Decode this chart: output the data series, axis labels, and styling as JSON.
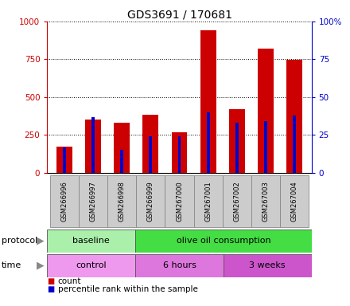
{
  "title": "GDS3691 / 170681",
  "samples": [
    "GSM266996",
    "GSM266997",
    "GSM266998",
    "GSM266999",
    "GSM267000",
    "GSM267001",
    "GSM267002",
    "GSM267003",
    "GSM267004"
  ],
  "count_values": [
    175,
    350,
    330,
    385,
    270,
    940,
    420,
    820,
    745
  ],
  "percentile_values": [
    17,
    37,
    15,
    24,
    24,
    40,
    33,
    34,
    38
  ],
  "left_ylim": [
    0,
    1000
  ],
  "right_ylim": [
    0,
    100
  ],
  "left_yticks": [
    0,
    250,
    500,
    750,
    1000
  ],
  "right_yticks": [
    0,
    25,
    50,
    75,
    100
  ],
  "left_yticklabels": [
    "0",
    "250",
    "500",
    "750",
    "1000"
  ],
  "right_yticklabels": [
    "0",
    "25",
    "50",
    "75",
    "100%"
  ],
  "bar_color": "#cc0000",
  "percentile_color": "#0000cc",
  "background_color": "#ffffff",
  "protocol_groups": [
    {
      "label": "baseline",
      "start": 0,
      "end": 3,
      "color": "#aaf0aa"
    },
    {
      "label": "olive oil consumption",
      "start": 3,
      "end": 9,
      "color": "#44dd44"
    }
  ],
  "time_groups": [
    {
      "label": "control",
      "start": 0,
      "end": 3,
      "color": "#ee99ee"
    },
    {
      "label": "6 hours",
      "start": 3,
      "end": 6,
      "color": "#dd77dd"
    },
    {
      "label": "3 weeks",
      "start": 6,
      "end": 9,
      "color": "#cc55cc"
    }
  ],
  "legend_count_label": "count",
  "legend_percentile_label": "percentile rank within the sample",
  "bar_width": 0.55,
  "grid_color": "#000000"
}
